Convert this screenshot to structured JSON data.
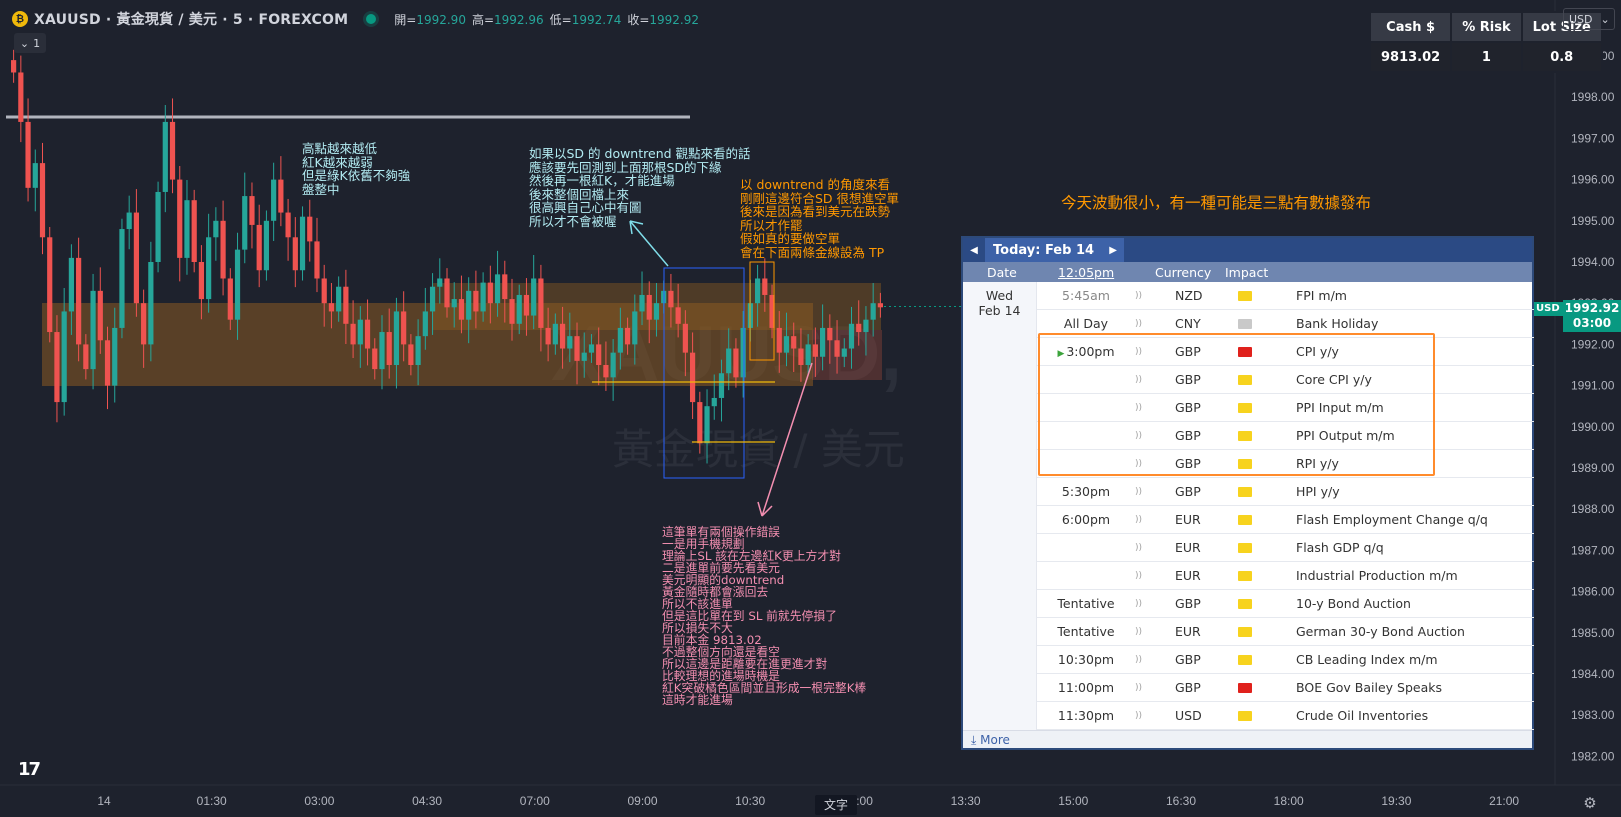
{
  "header": {
    "logo_letter": "₿",
    "symbol": "XAUUSD · 黃金現貨 / 美元 · 5 · FOREXCOM",
    "open_label": "開=",
    "open": "1992.90",
    "high_label": "高=",
    "high": "1992.96",
    "low_label": "低=",
    "low": "1992.74",
    "close_label": "收=",
    "close": "1992.92",
    "collapse": "1"
  },
  "risk_table": {
    "headers": [
      "Cash $",
      "% Risk",
      "Lot Size"
    ],
    "values": [
      "9813.02",
      "1",
      "0.8"
    ]
  },
  "currency_button": "USD",
  "price_tag": {
    "currency": "USD",
    "price": "1992.92",
    "countdown": "03:00"
  },
  "watermark": {
    "symbol": "XAUUSD,",
    "name": "黃金現貨 / 美元"
  },
  "y_axis": {
    "ticks": [
      "1999.00",
      "1998.00",
      "1997.00",
      "1996.00",
      "1995.00",
      "1994.00",
      "1993.00",
      "1992.00",
      "1991.00",
      "1990.00",
      "1989.00",
      "1988.00",
      "1987.00",
      "1986.00",
      "1985.00",
      "1984.00",
      "1983.00",
      "1982.00"
    ]
  },
  "x_axis": {
    "ticks": [
      "14",
      "01:30",
      "03:00",
      "04:30",
      "07:00",
      "09:00",
      "10:30",
      "12:00",
      "13:30",
      "15:00",
      "16:30",
      "18:00",
      "19:30",
      "21:00"
    ]
  },
  "notes": {
    "note1": "高點越來越低\n紅K越來越弱\n但是綠K依舊不夠強\n盤整中",
    "note2": "如果以SD 的 downtrend 觀點來看的話\n應該要先回測到上面那根SD的下緣\n然後再一根紅K，才能進場\n後來整個回檔上來\n很高興自己心中有圖\n所以才不會被喔",
    "note3": "以 downtrend 的角度來看\n剛剛這邊符合SD 很想進空單\n後來是因為看到美元在跌勢\n所以才作罷\n假如真的要做空單\n會在下面兩條金線設為 TP",
    "note4": "今天波動很小，有一種可能是三點有數據發布",
    "note5": "這筆單有兩個操作錯誤\n一是用手機規劃\n理論上SL 該在左邊紅K更上方才對\n二是進單前要先看美元\n美元明顯的downtrend\n黃金隨時都會漲回去\n所以不該進單\n但是這比單在到 SL 前就先停損了\n所以損失不大\n目前本金 9813.02\n不過整個方向還是看空\n所以這邊是距離要在進更進才對\n比較理想的進場時機是\n紅K突破橘色區間並且形成一根完整K棒\n這時才能進場"
  },
  "calendar": {
    "title": "Today: Feb 14",
    "columns": {
      "date": "Date",
      "time": "12:05pm",
      "currency": "Currency",
      "impact": "Impact"
    },
    "day": "Wed\nFeb 14",
    "events": [
      {
        "time": "5:45am",
        "cur": "NZD",
        "impact": "med",
        "event": "FPI m/m",
        "dim": true
      },
      {
        "time": "All Day",
        "cur": "CNY",
        "impact": "low",
        "event": "Bank Holiday"
      },
      {
        "time": "3:00pm",
        "cur": "GBP",
        "impact": "high",
        "event": "CPI y/y",
        "next": true
      },
      {
        "time": "",
        "cur": "GBP",
        "impact": "med",
        "event": "Core CPI y/y"
      },
      {
        "time": "",
        "cur": "GBP",
        "impact": "med",
        "event": "PPI Input m/m"
      },
      {
        "time": "",
        "cur": "GBP",
        "impact": "med",
        "event": "PPI Output m/m"
      },
      {
        "time": "",
        "cur": "GBP",
        "impact": "med",
        "event": "RPI y/y"
      },
      {
        "time": "5:30pm",
        "cur": "GBP",
        "impact": "med",
        "event": "HPI y/y"
      },
      {
        "time": "6:00pm",
        "cur": "EUR",
        "impact": "med",
        "event": "Flash Employment Change q/q"
      },
      {
        "time": "",
        "cur": "EUR",
        "impact": "med",
        "event": "Flash GDP q/q"
      },
      {
        "time": "",
        "cur": "EUR",
        "impact": "med",
        "event": "Industrial Production m/m"
      },
      {
        "time": "Tentative",
        "cur": "GBP",
        "impact": "med",
        "event": "10-y Bond Auction"
      },
      {
        "time": "Tentative",
        "cur": "EUR",
        "impact": "med",
        "event": "German 30-y Bond Auction"
      },
      {
        "time": "10:30pm",
        "cur": "GBP",
        "impact": "med",
        "event": "CB Leading Index m/m"
      },
      {
        "time": "11:00pm",
        "cur": "GBP",
        "impact": "high",
        "event": "BOE Gov Bailey Speaks"
      },
      {
        "time": "11:30pm",
        "cur": "USD",
        "impact": "med",
        "event": "Crude Oil Inventories"
      }
    ],
    "more": "More"
  },
  "footer": {
    "text_tag": "文字",
    "logo": "17"
  },
  "colors": {
    "up": "#26a69a",
    "down": "#ef5350",
    "background": "#1e222d",
    "zone": "#8a5a22",
    "accent": "#089981"
  }
}
